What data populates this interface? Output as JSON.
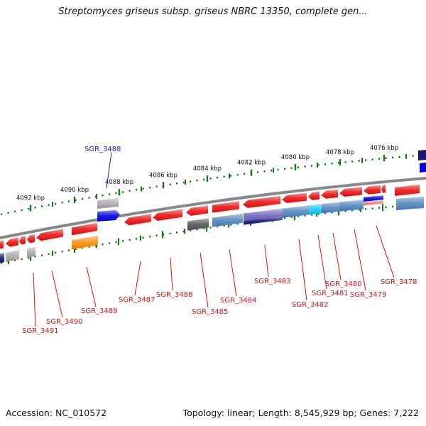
{
  "title": "Streptomyces griseus subsp. griseus NBRC 13350, complete gen...",
  "footer": {
    "accession": "Accession: NC_010572",
    "summary": "Topology: linear; Length: 8,545,929 bp; Genes: 7,222"
  },
  "scale_labels": [
    "4092 kbp",
    "4090 kbp",
    "4088 kbp",
    "4086 kbp",
    "4084 kbp",
    "4082 kbp",
    "4080 kbp",
    "4078 kbp",
    "4076 kbp"
  ],
  "gene_labels": {
    "top": [
      "SGR_3488"
    ],
    "bottom": [
      "SGR_3491",
      "SGR_3490",
      "SGR_3489",
      "SGR_3487",
      "SGR_3486",
      "SGR_3485",
      "SGR_3484",
      "SGR_3483",
      "SGR_3482",
      "SGR_3481",
      "SGR_3480",
      "SGR_3479",
      "SGR_3478"
    ]
  },
  "colors": {
    "cds": "#ee1111",
    "rna": "#0000dd",
    "scale": "#117711",
    "backbone": "#888888",
    "label_top": "#1a1acc",
    "label_bottom": "#dd1111",
    "cog_gray": "#aaaaaa",
    "cog_orange": "#ff8c00",
    "cog_steel": "#4f87bf",
    "cog_navy": "#151575",
    "cog_purple": "#7060c0",
    "cog_cyan": "#11ccff",
    "cog_dark": "#555555",
    "cog_pink": "#ee8888"
  }
}
